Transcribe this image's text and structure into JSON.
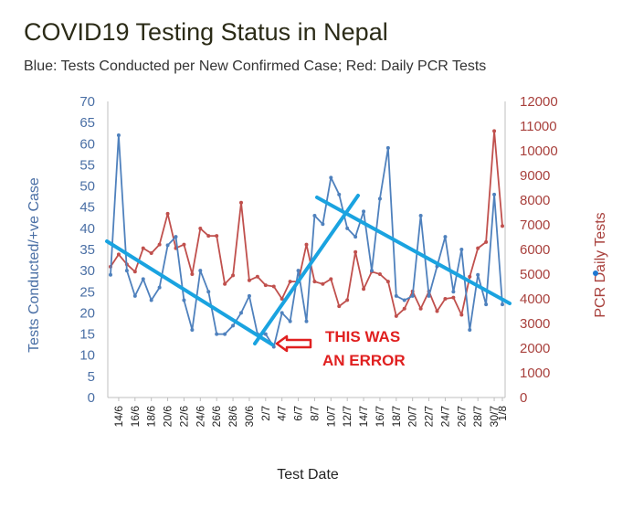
{
  "chart_data": {
    "type": "line",
    "title": "COVID19 Testing Status in Nepal",
    "subtitle": "Blue: Tests Conducted per New Confirmed Case; Red: Daily PCR Tests",
    "xlabel": "Test Date",
    "ylabel_left": "Tests Conducted/+ve Case",
    "ylabel_right": "PCR Daily Tests",
    "ylim_left": [
      0,
      70
    ],
    "ylim_right": [
      0,
      12000
    ],
    "yticks_left": [
      0,
      5,
      10,
      15,
      20,
      25,
      30,
      35,
      40,
      45,
      50,
      55,
      60,
      65,
      70
    ],
    "yticks_right": [
      0,
      1000,
      2000,
      3000,
      4000,
      5000,
      6000,
      7000,
      8000,
      9000,
      10000,
      11000,
      12000
    ],
    "x_tick_labels": [
      "14/6",
      "16/6",
      "18/6",
      "20/6",
      "22/6",
      "24/6",
      "26/6",
      "28/6",
      "30/6",
      "2/7",
      "4/7",
      "6/7",
      "8/7",
      "10/7",
      "12/7",
      "14/7",
      "16/7",
      "18/7",
      "20/7",
      "22/7",
      "24/7",
      "26/7",
      "28/7",
      "30/7",
      "1/8"
    ],
    "series": [
      {
        "axis": "left",
        "color": "#4f81bd",
        "values": [
          29,
          62,
          30,
          24,
          28,
          23,
          26,
          36,
          38,
          23,
          16,
          30,
          25,
          15,
          15,
          17,
          20,
          24,
          15,
          15,
          12,
          20,
          18,
          30,
          18,
          43,
          41,
          52,
          48,
          40,
          38,
          44,
          30,
          47,
          59,
          24,
          23,
          24,
          43,
          24,
          31,
          38,
          25,
          35,
          16,
          29,
          22,
          48,
          22
        ]
      },
      {
        "axis": "right",
        "color": "#c0504d",
        "values": [
          5300,
          5800,
          5400,
          5100,
          6050,
          5850,
          6200,
          7450,
          6050,
          6200,
          5000,
          6850,
          6550,
          6550,
          4600,
          4950,
          7900,
          4750,
          4900,
          4550,
          4500,
          4000,
          4700,
          4700,
          6200,
          4700,
          4600,
          4800,
          3700,
          3950,
          5900,
          4400,
          5100,
          5000,
          4700,
          3300,
          3600,
          4300,
          3600,
          4300,
          3500,
          4000,
          4050,
          3350,
          4900,
          6050,
          6300,
          10800,
          6950
        ]
      }
    ]
  },
  "annotation": {
    "text_line1": "THIS WAS",
    "text_line2": "AN ERROR",
    "color": "#e02020",
    "trendline_color": "#1aa3e0"
  }
}
